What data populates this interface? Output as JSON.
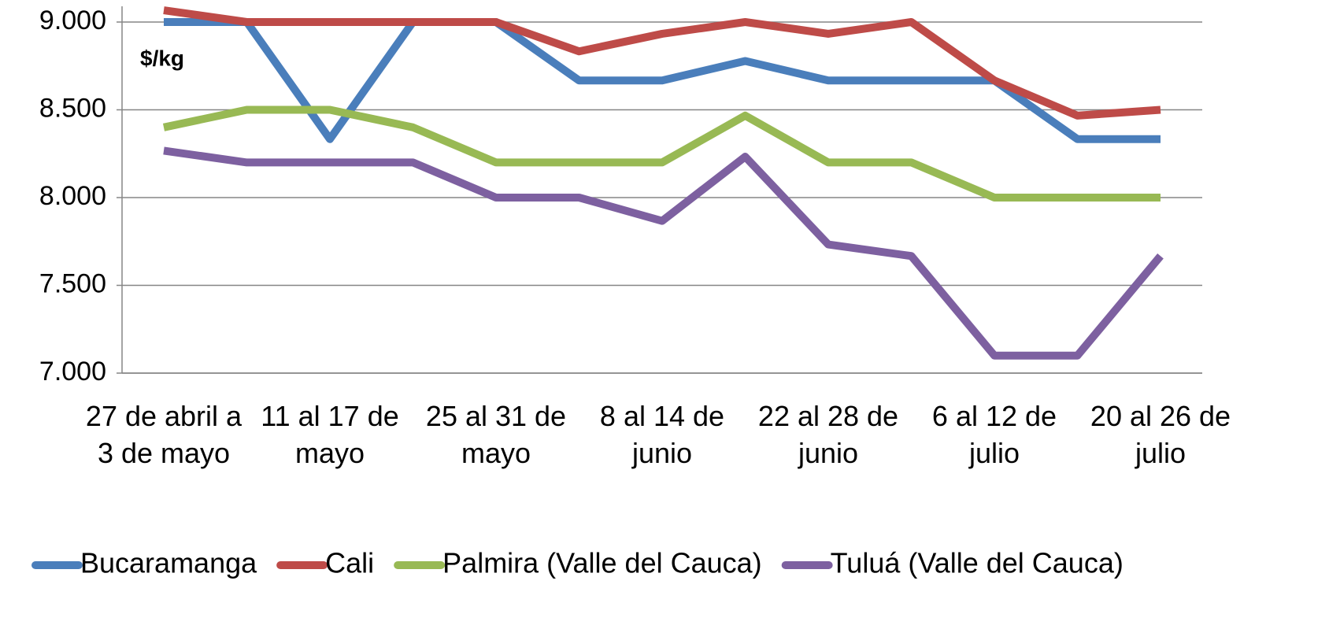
{
  "chart_data": {
    "type": "line",
    "annotation": "$/kg",
    "categories": [
      "27 de abril a 3 de mayo",
      null,
      "11 al 17 de mayo",
      null,
      "25 al 31 de mayo",
      null,
      "8 al 14 de junio",
      null,
      "22 al 28 de junio",
      null,
      "6 al 12 de julio",
      null,
      "20 al 26 de julio"
    ],
    "series": [
      {
        "name": "Bucaramanga",
        "color": "#4a7ebb",
        "values": [
          9000,
          9000,
          8333,
          9000,
          9000,
          8667,
          8667,
          8778,
          8667,
          8667,
          8667,
          8333,
          8333
        ]
      },
      {
        "name": "Cali",
        "color": "#be4b48",
        "values": [
          9067,
          9000,
          9000,
          9000,
          9000,
          8833,
          8933,
          9000,
          8933,
          9000,
          8667,
          8467,
          8500
        ]
      },
      {
        "name": "Palmira (Valle del Cauca)",
        "color": "#98b954",
        "values": [
          8400,
          8500,
          8500,
          8400,
          8200,
          8200,
          8200,
          8467,
          8200,
          8200,
          8000,
          8000,
          8000
        ]
      },
      {
        "name": "Tuluá (Valle del Cauca)",
        "color": "#7d60a0",
        "values": [
          8267,
          8200,
          8200,
          8200,
          8000,
          8000,
          7867,
          8233,
          7733,
          7667,
          7100,
          7100,
          7667
        ]
      }
    ],
    "ylim": [
      7000,
      9000
    ],
    "yticks": [
      {
        "value": 7000,
        "label": "7.000"
      },
      {
        "value": 7500,
        "label": "7.500"
      },
      {
        "value": 8000,
        "label": "8.000"
      },
      {
        "value": 8500,
        "label": "8.500"
      },
      {
        "value": 9000,
        "label": "9.000"
      }
    ],
    "grid": true,
    "legend": "bottom"
  }
}
